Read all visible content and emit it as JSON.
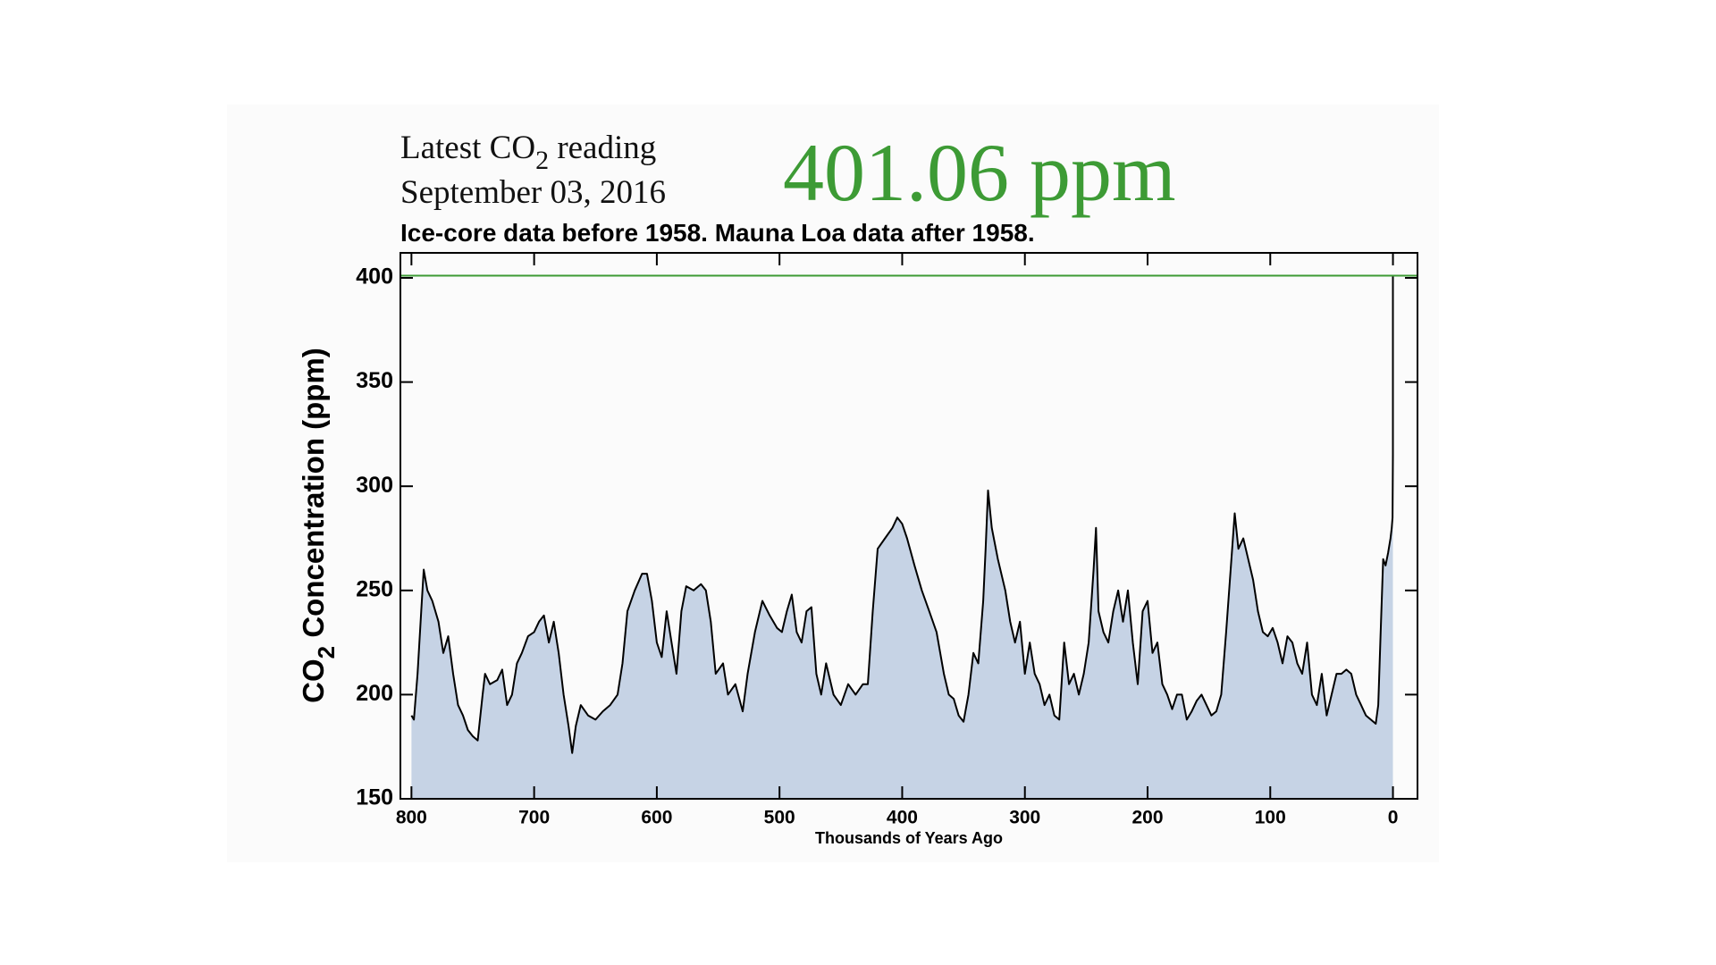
{
  "chart_data": {
    "type": "area",
    "reading_label": {
      "prefix": "Latest CO",
      "subscript": "2",
      "suffix": " reading"
    },
    "reading_date": "September 03, 2016",
    "reference_line": {
      "value": 401.06,
      "label": "401.06 ppm",
      "color": "#3d9b35"
    },
    "subtitle": "Ice-core data before 1958. Mauna Loa data after 1958.",
    "y_label": {
      "prefix": "CO",
      "subscript": "2",
      "suffix": " Concentration (ppm)"
    },
    "x_label": "Thousands of Years Ago",
    "color": "#000000",
    "fill": "#c6d3e5",
    "xlim": [
      809,
      -20
    ],
    "ylim": [
      150,
      412
    ],
    "xticks": [
      800,
      700,
      600,
      500,
      400,
      300,
      200,
      100,
      0
    ],
    "yticks": [
      150,
      200,
      250,
      300,
      350,
      400
    ],
    "x": [
      800,
      798,
      795,
      792,
      790,
      787,
      783,
      778,
      774,
      770,
      766,
      762,
      758,
      754,
      750,
      746,
      742,
      740,
      736,
      730,
      726,
      722,
      718,
      714,
      710,
      705,
      700,
      696,
      692,
      688,
      684,
      680,
      676,
      672,
      669,
      666,
      662,
      656,
      650,
      644,
      638,
      632,
      628,
      624,
      618,
      612,
      608,
      604,
      600,
      596,
      592,
      588,
      584,
      580,
      576,
      570,
      564,
      560,
      556,
      552,
      546,
      542,
      536,
      530,
      526,
      520,
      514,
      508,
      502,
      498,
      494,
      490,
      486,
      482,
      478,
      474,
      470,
      466,
      462,
      456,
      450,
      444,
      438,
      432,
      428,
      424,
      420,
      414,
      408,
      404,
      400,
      396,
      390,
      384,
      378,
      372,
      366,
      362,
      358,
      354,
      350,
      346,
      342,
      338,
      334,
      332,
      330,
      327,
      322,
      316,
      312,
      308,
      304,
      300,
      296,
      292,
      288,
      284,
      280,
      276,
      272,
      268,
      264,
      260,
      256,
      252,
      248,
      244,
      242,
      240,
      236,
      232,
      228,
      224,
      220,
      216,
      212,
      208,
      204,
      200,
      196,
      192,
      188,
      184,
      180,
      176,
      172,
      168,
      164,
      160,
      156,
      152,
      148,
      144,
      140,
      136,
      132,
      129,
      126,
      122,
      118,
      114,
      110,
      106,
      102,
      98,
      94,
      90,
      86,
      82,
      78,
      74,
      70,
      66,
      62,
      58,
      54,
      50,
      46,
      42,
      38,
      34,
      30,
      26,
      22,
      18,
      14,
      12,
      10,
      8,
      6,
      4,
      2,
      1,
      0.3,
      0.05,
      0.02,
      0
    ],
    "values": [
      190,
      188,
      210,
      240,
      260,
      250,
      245,
      235,
      220,
      228,
      210,
      195,
      190,
      183,
      180,
      178,
      200,
      210,
      205,
      207,
      212,
      195,
      200,
      215,
      220,
      228,
      230,
      235,
      238,
      225,
      235,
      220,
      200,
      185,
      172,
      185,
      195,
      190,
      188,
      192,
      195,
      200,
      215,
      240,
      250,
      258,
      258,
      245,
      225,
      218,
      240,
      225,
      210,
      240,
      252,
      250,
      253,
      250,
      235,
      210,
      215,
      200,
      205,
      192,
      210,
      230,
      245,
      238,
      232,
      230,
      240,
      248,
      230,
      225,
      240,
      242,
      210,
      200,
      215,
      200,
      195,
      205,
      200,
      205,
      205,
      240,
      270,
      275,
      280,
      285,
      282,
      275,
      262,
      250,
      240,
      230,
      210,
      200,
      198,
      190,
      187,
      200,
      220,
      215,
      245,
      270,
      298,
      280,
      265,
      250,
      235,
      225,
      235,
      210,
      225,
      210,
      205,
      195,
      200,
      190,
      188,
      225,
      205,
      210,
      200,
      210,
      225,
      260,
      280,
      240,
      230,
      225,
      240,
      250,
      235,
      250,
      225,
      205,
      240,
      245,
      220,
      225,
      205,
      200,
      193,
      200,
      200,
      188,
      192,
      197,
      200,
      195,
      190,
      192,
      200,
      230,
      262,
      287,
      270,
      275,
      265,
      255,
      240,
      230,
      228,
      232,
      225,
      215,
      228,
      225,
      215,
      210,
      225,
      200,
      195,
      210,
      190,
      200,
      210,
      210,
      212,
      210,
      200,
      195,
      190,
      188,
      186,
      195,
      230,
      265,
      262,
      268,
      275,
      280,
      285,
      315,
      340,
      401
    ]
  }
}
